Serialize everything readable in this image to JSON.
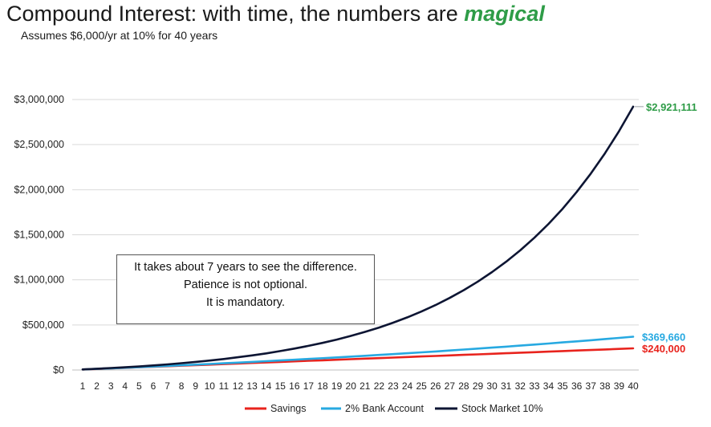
{
  "title": {
    "main": "Compound Interest: with time, the numbers are ",
    "highlight": "magical"
  },
  "subtitle": "Assumes $6,000/yr at 10% for 40 years",
  "annotation": {
    "line1": "It takes about 7 years to see the difference.",
    "line2": "Patience is not optional.",
    "line3": "It is mandatory."
  },
  "chart_data": {
    "type": "line",
    "x": [
      1,
      2,
      3,
      4,
      5,
      6,
      7,
      8,
      9,
      10,
      11,
      12,
      13,
      14,
      15,
      16,
      17,
      18,
      19,
      20,
      21,
      22,
      23,
      24,
      25,
      26,
      27,
      28,
      29,
      30,
      31,
      32,
      33,
      34,
      35,
      36,
      37,
      38,
      39,
      40
    ],
    "ylim": [
      0,
      3000000
    ],
    "yticks": [
      0,
      500000,
      1000000,
      1500000,
      2000000,
      2500000,
      3000000
    ],
    "ytick_labels": [
      "$0",
      "$500,000",
      "$1,000,000",
      "$1,500,000",
      "$2,000,000",
      "$2,500,000",
      "$3,000,000"
    ],
    "grid": true,
    "legend_position": "bottom",
    "series": [
      {
        "name": "Savings",
        "color": "#e8231d",
        "values": [
          6000,
          12000,
          18000,
          24000,
          30000,
          36000,
          42000,
          48000,
          54000,
          60000,
          66000,
          72000,
          78000,
          84000,
          90000,
          96000,
          102000,
          108000,
          114000,
          120000,
          126000,
          132000,
          138000,
          144000,
          150000,
          156000,
          162000,
          168000,
          174000,
          180000,
          186000,
          192000,
          198000,
          204000,
          210000,
          216000,
          222000,
          228000,
          234000,
          240000
        ]
      },
      {
        "name": "2% Bank Account",
        "color": "#27a9e1",
        "values": [
          6120,
          12362,
          18730,
          25224,
          31849,
          38606,
          45498,
          52528,
          59698,
          67012,
          74473,
          82082,
          89844,
          97761,
          105836,
          114073,
          122474,
          131044,
          139785,
          148700,
          157794,
          167070,
          176531,
          186182,
          196025,
          206066,
          216307,
          226753,
          237408,
          248276,
          259362,
          270669,
          282202,
          293966,
          305965,
          318205,
          330689,
          343423,
          356411,
          369660
        ]
      },
      {
        "name": "Stock Market 10%",
        "color": "#0d1533",
        "values": [
          6600,
          13860,
          21846,
          30631,
          40294,
          50923,
          62615,
          75477,
          89625,
          105187,
          122306,
          141136,
          161850,
          184635,
          209698,
          237268,
          267595,
          300955,
          337650,
          378015,
          422417,
          471258,
          524984,
          584083,
          649091,
          720600,
          799260,
          885786,
          980965,
          1085661,
          1200827,
          1327510,
          1466861,
          1620147,
          1788762,
          1974238,
          2178262,
          2402688,
          2649557,
          2921111
        ]
      }
    ],
    "end_labels": [
      {
        "series": "Stock Market 10%",
        "text": "$2,921,111",
        "color": "#2e9c47"
      },
      {
        "series": "2% Bank Account",
        "text": "$369,660",
        "color": "#27a9e1"
      },
      {
        "series": "Savings",
        "text": "$240,000",
        "color": "#e8231d"
      }
    ]
  }
}
